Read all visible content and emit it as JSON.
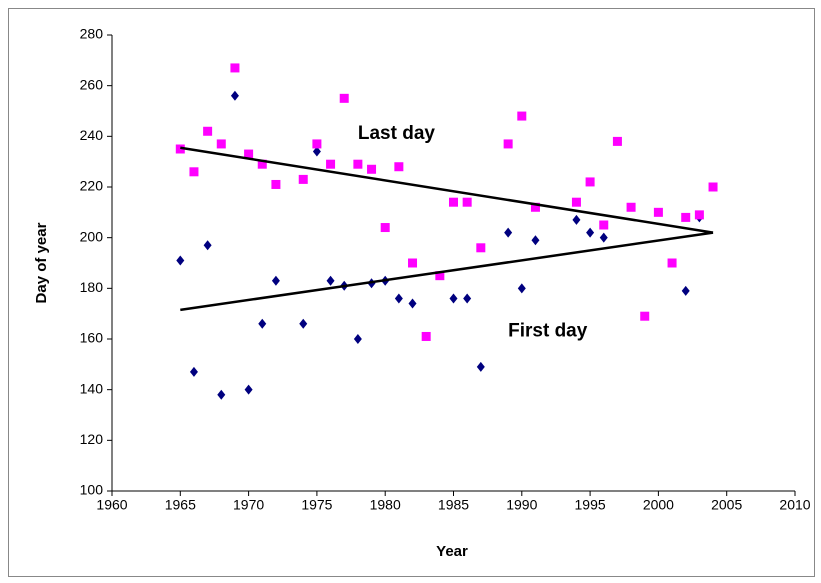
{
  "chart_data": {
    "type": "scatter",
    "xlabel": "Year",
    "ylabel": "Day of year",
    "xlim": [
      1960,
      2010
    ],
    "xticks": [
      1960,
      1965,
      1970,
      1975,
      1980,
      1985,
      1990,
      1995,
      2000,
      2005,
      2010
    ],
    "ylim": [
      100,
      280
    ],
    "yticks": [
      100,
      120,
      140,
      160,
      180,
      200,
      220,
      240,
      260,
      280
    ],
    "grid": false,
    "series": [
      {
        "color": "#00007f",
        "marker": "diamond",
        "x": [
          1965,
          1966,
          1967,
          1968,
          1969,
          1970,
          1971,
          1972,
          1974,
          1975,
          1976,
          1977,
          1978,
          1979,
          1980,
          1981,
          1982,
          1985,
          1986,
          1987,
          1989,
          1990,
          1991,
          1994,
          1995,
          1996,
          2002,
          2003
        ],
        "values": [
          191,
          147,
          197,
          138,
          256,
          140,
          166,
          183,
          166,
          234,
          183,
          181,
          160,
          182,
          183,
          176,
          174,
          176,
          176,
          149,
          202,
          180,
          199,
          207,
          202,
          200,
          179,
          208
        ]
      },
      {
        "color": "#ff00ff",
        "marker": "square",
        "x": [
          1965,
          1966,
          1967,
          1968,
          1969,
          1970,
          1971,
          1972,
          1974,
          1975,
          1976,
          1977,
          1978,
          1979,
          1980,
          1981,
          1982,
          1983,
          1984,
          1985,
          1986,
          1987,
          1989,
          1990,
          1991,
          1994,
          1995,
          1996,
          1997,
          1998,
          1999,
          2000,
          2001,
          2002,
          2003,
          2004
        ],
        "values": [
          235,
          226,
          242,
          237,
          267,
          233,
          229,
          221,
          223,
          237,
          229,
          255,
          229,
          227,
          204,
          228,
          190,
          161,
          185,
          214,
          214,
          196,
          237,
          248,
          212,
          214,
          222,
          205,
          238,
          212,
          169,
          210,
          190,
          208,
          209,
          220
        ]
      }
    ],
    "trendlines": [
      {
        "color": "#000000",
        "x": [
          1965,
          2004
        ],
        "values": [
          235.5,
          202
        ]
      },
      {
        "color": "#000000",
        "x": [
          1965,
          2004
        ],
        "values": [
          171.5,
          202
        ]
      }
    ],
    "annotations": [
      {
        "text": "Last day",
        "x": 1978,
        "y": 241
      },
      {
        "text": "First day",
        "x": 1989,
        "y": 163
      }
    ]
  }
}
